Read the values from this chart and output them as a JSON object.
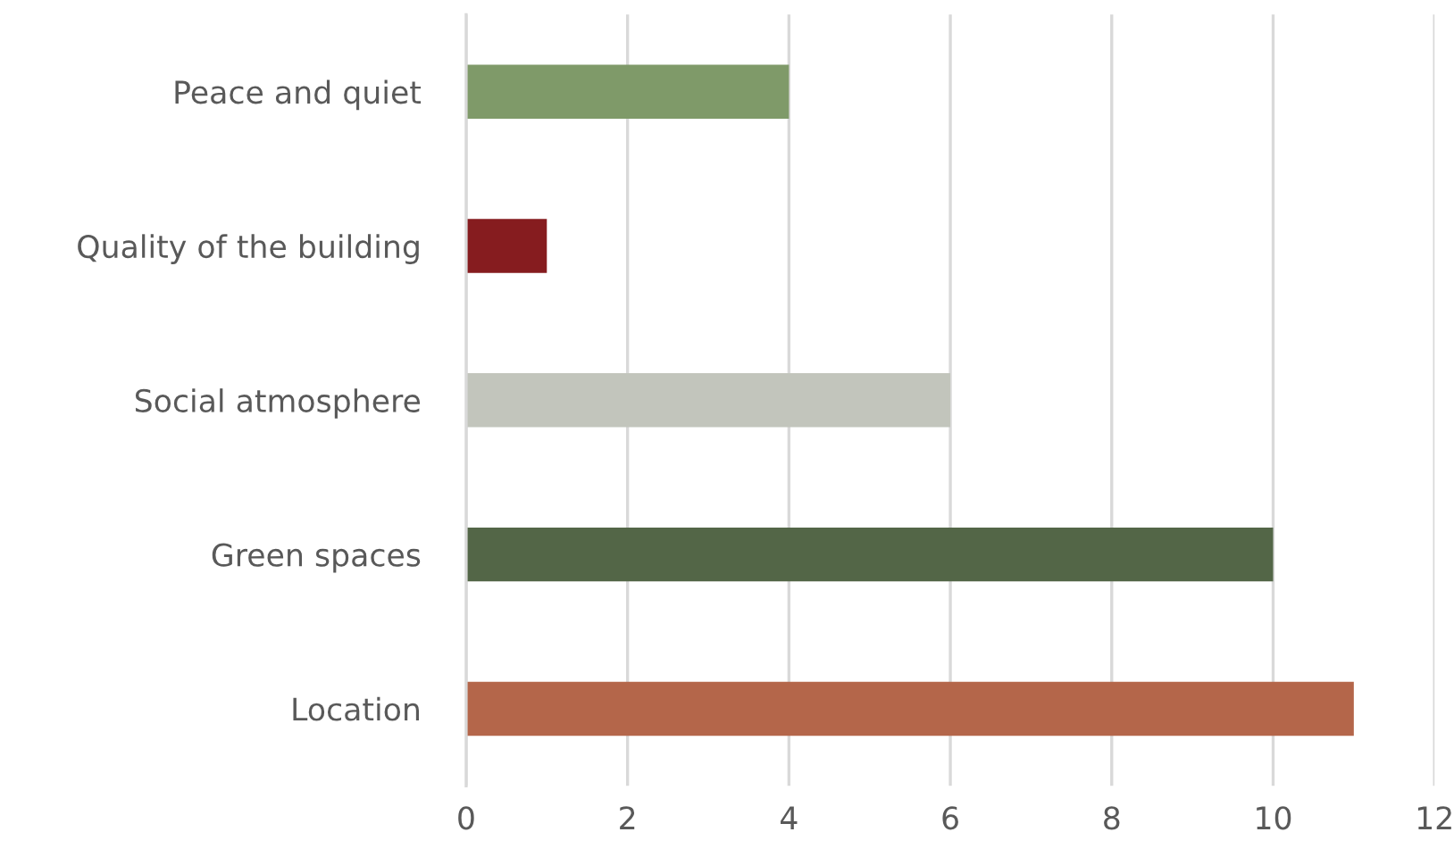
{
  "chart_data": {
    "type": "bar",
    "orientation": "horizontal",
    "categories": [
      "Peace and quiet",
      "Quality of the building",
      "Social atmosphere",
      "Green spaces",
      "Location"
    ],
    "values": [
      4,
      1,
      6,
      10,
      11
    ],
    "colors": [
      "#7f9a69",
      "#861c1f",
      "#c2c5bc",
      "#536647",
      "#b4664a"
    ],
    "xlim": [
      0,
      12
    ],
    "xticks": [
      0,
      2,
      4,
      6,
      8,
      10,
      12
    ],
    "grid": "x"
  }
}
